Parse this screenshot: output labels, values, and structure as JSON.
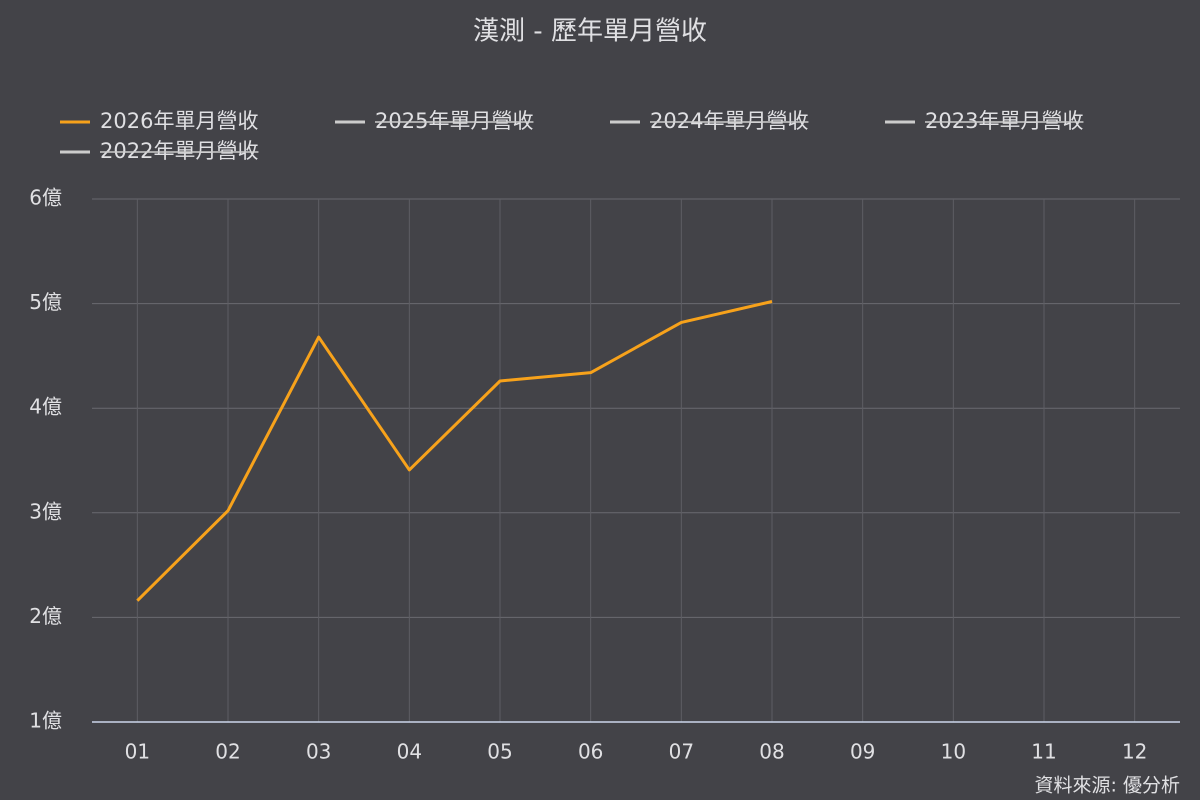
{
  "chart_data": {
    "type": "line",
    "title": "漢測 - 歷年單月營收",
    "categories": [
      "01",
      "02",
      "03",
      "04",
      "05",
      "06",
      "07",
      "08",
      "09",
      "10",
      "11",
      "12"
    ],
    "series": [
      {
        "name": "2026年單月營收",
        "color": "#f7a21b",
        "values": [
          2.16,
          3.02,
          4.68,
          3.41,
          4.26,
          4.34,
          4.82,
          5.02,
          null,
          null,
          null,
          null
        ]
      },
      {
        "name": "2025年單月營收",
        "color": "#cccccc",
        "hidden": true,
        "values": [
          null,
          null,
          null,
          null,
          null,
          null,
          null,
          null,
          null,
          null,
          null,
          null
        ]
      },
      {
        "name": "2024年單月營收",
        "color": "#cccccc",
        "hidden": true,
        "values": [
          null,
          null,
          null,
          null,
          null,
          null,
          null,
          null,
          null,
          null,
          null,
          null
        ]
      },
      {
        "name": "2023年單月營收",
        "color": "#cccccc",
        "hidden": true,
        "values": [
          null,
          null,
          null,
          null,
          null,
          null,
          null,
          null,
          null,
          null,
          null,
          null
        ]
      },
      {
        "name": "2022年單月營收",
        "color": "#cccccc",
        "hidden": true,
        "values": [
          null,
          null,
          null,
          null,
          null,
          null,
          null,
          null,
          null,
          null,
          null,
          null
        ]
      }
    ],
    "ylim": [
      1,
      6
    ],
    "yticks": [
      {
        "value": 1,
        "label": "1億"
      },
      {
        "value": 2,
        "label": "2億"
      },
      {
        "value": 3,
        "label": "3億"
      },
      {
        "value": 4,
        "label": "4億"
      },
      {
        "value": 5,
        "label": "5億"
      },
      {
        "value": 6,
        "label": "6億"
      }
    ],
    "grid": true,
    "source": "資料來源: 優分析"
  }
}
